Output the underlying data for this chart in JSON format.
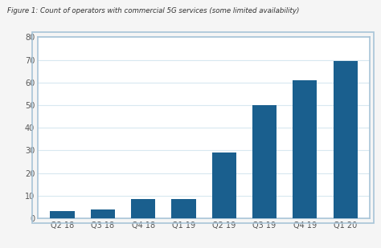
{
  "title": "Figure 1: Count of operators with commercial 5G services (some limited availability)",
  "categories": [
    "Q2 18",
    "Q3 18",
    "Q4 18",
    "Q1 19",
    "Q2 19",
    "Q3 19",
    "Q4 19",
    "Q1 20"
  ],
  "values": [
    3,
    4,
    8.5,
    8.5,
    29,
    50,
    61,
    69.5
  ],
  "bar_color": "#1a5f8e",
  "ylim": [
    0,
    80
  ],
  "yticks": [
    0,
    10,
    20,
    30,
    40,
    50,
    60,
    70,
    80
  ],
  "background_color": "#f5f5f5",
  "chart_bg_color": "#ffffff",
  "border_color": "#a8c4d8",
  "grid_color": "#d8e8f0",
  "title_fontsize": 6.2,
  "tick_fontsize": 7.0,
  "bar_width": 0.6
}
